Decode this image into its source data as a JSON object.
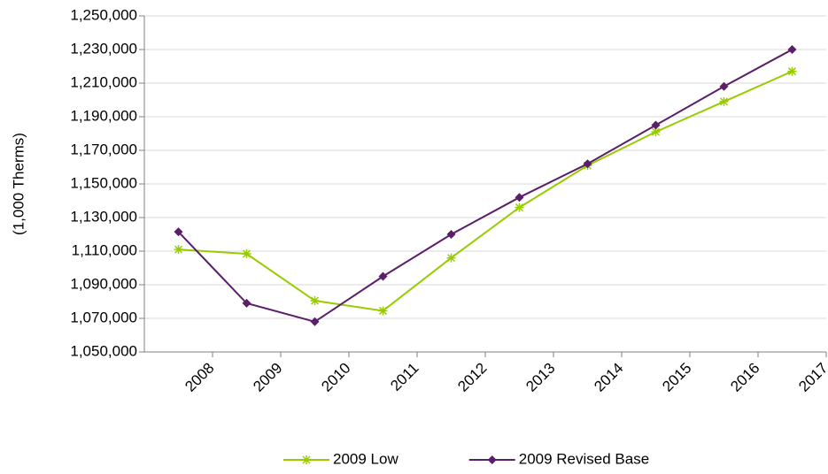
{
  "chart_data": {
    "type": "line",
    "y_label": "(1,000 Therms)",
    "categories": [
      "2008",
      "2009",
      "2010",
      "2011",
      "2012",
      "2013",
      "2014",
      "2015",
      "2016",
      "2017"
    ],
    "series": [
      {
        "name": "2009 Low",
        "color": "#99cc00",
        "marker": "asterisk",
        "values": [
          1111000,
          1108400,
          1080500,
          1074500,
          1106000,
          1136000,
          1161000,
          1181000,
          1199000,
          1217000
        ]
      },
      {
        "name": "2009 Revised Base",
        "color": "#5b1f6a",
        "marker": "diamond",
        "values": [
          1121500,
          1079000,
          1068000,
          1095000,
          1120000,
          1142000,
          1162000,
          1185000,
          1208000,
          1230000
        ]
      }
    ],
    "ylim": [
      1050000,
      1250000
    ],
    "yticks": [
      {
        "value": 1050000,
        "label": "1,050,000"
      },
      {
        "value": 1070000,
        "label": "1,070,000"
      },
      {
        "value": 1090000,
        "label": "1,090,000"
      },
      {
        "value": 1110000,
        "label": "1,110,000"
      },
      {
        "value": 1130000,
        "label": "1,130,000"
      },
      {
        "value": 1150000,
        "label": "1,150,000"
      },
      {
        "value": 1170000,
        "label": "1,170,000"
      },
      {
        "value": 1190000,
        "label": "1,190,000"
      },
      {
        "value": 1210000,
        "label": "1,210,000"
      },
      {
        "value": 1230000,
        "label": "1,230,000"
      },
      {
        "value": 1250000,
        "label": "1,250,000"
      }
    ],
    "grid": true,
    "legend": "bottom"
  }
}
